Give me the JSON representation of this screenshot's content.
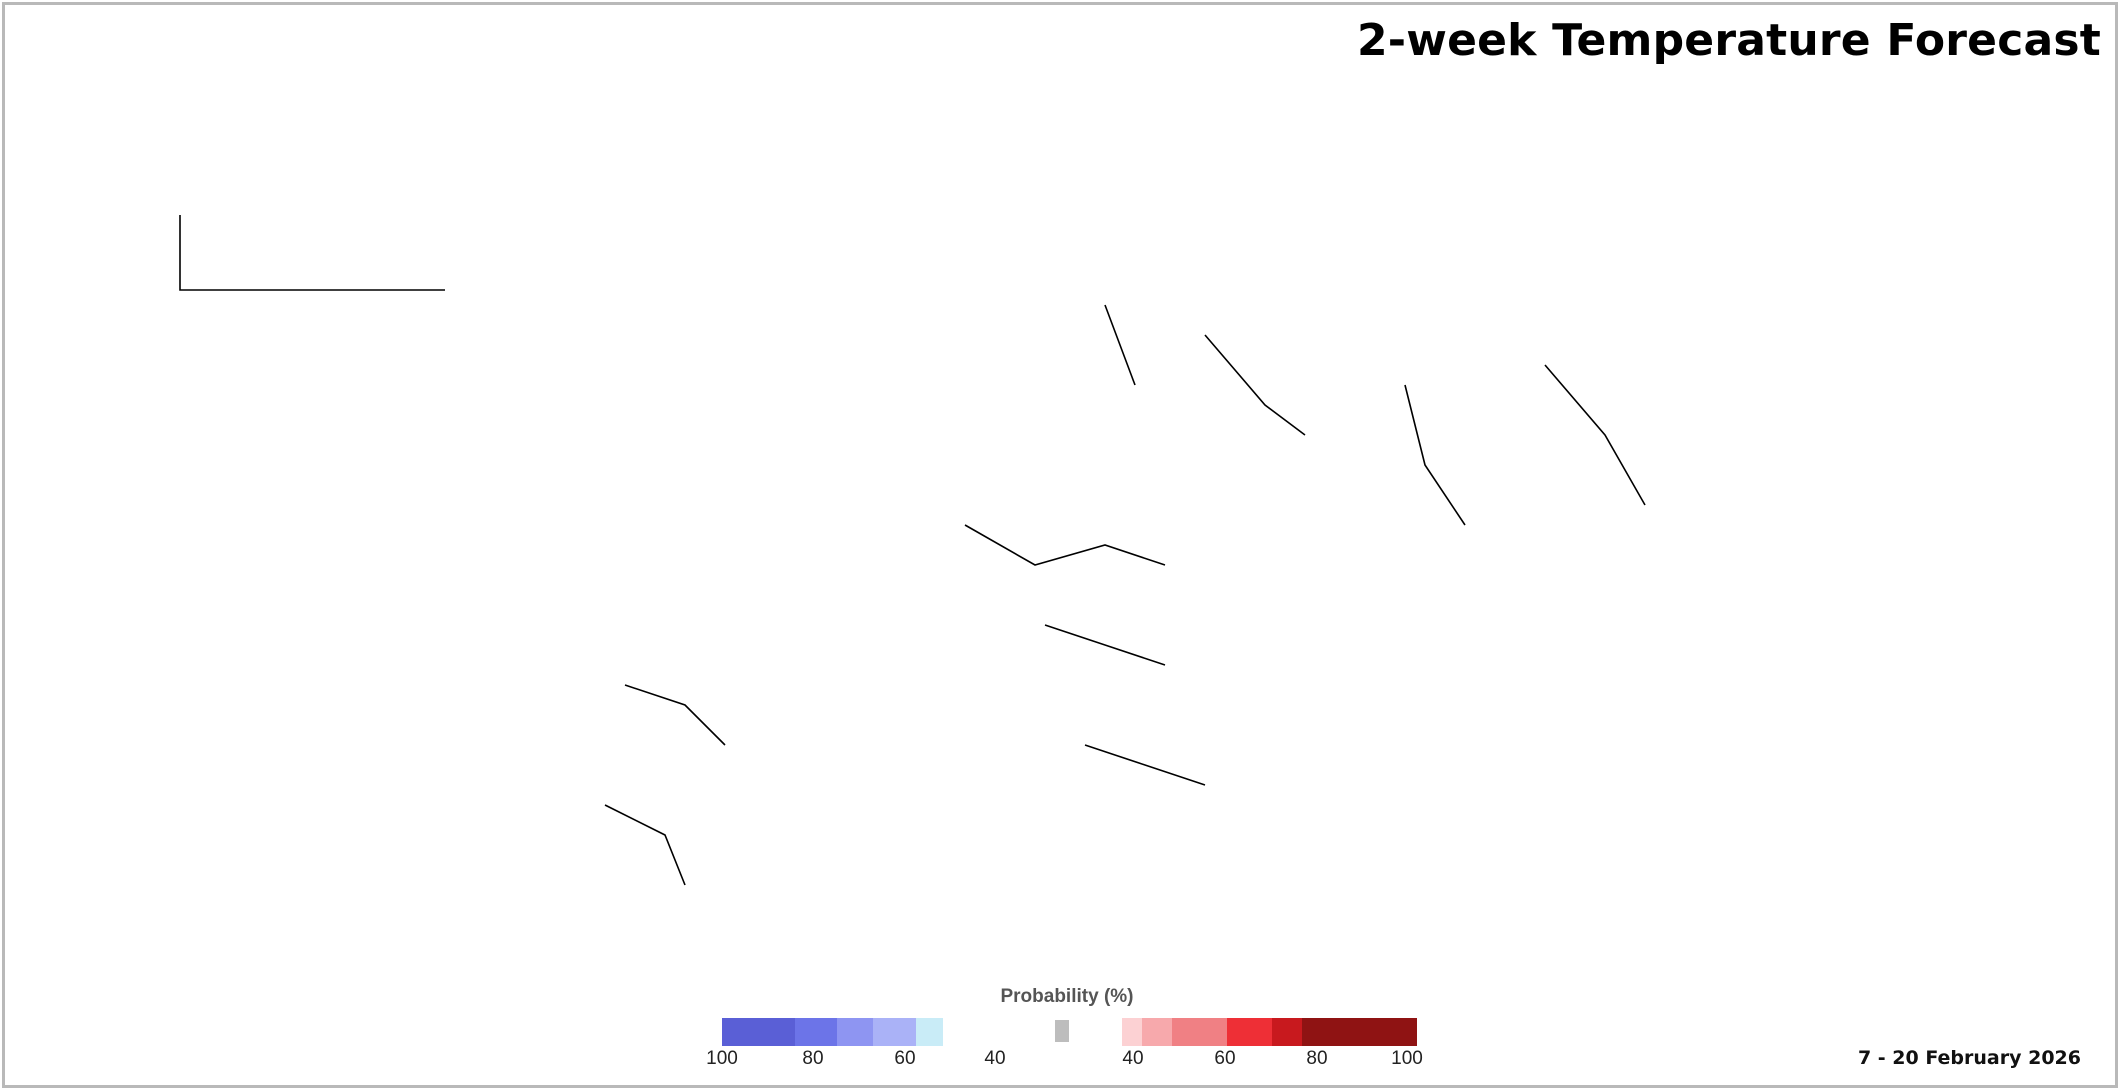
{
  "title": "2-week Temperature Forecast",
  "date_range": "7 - 20 February 2026",
  "legend": {
    "title": "Probability (%)",
    "below_ticks": [
      "100",
      "80",
      "60",
      "40"
    ],
    "above_ticks": [
      "40",
      "60",
      "80",
      "100"
    ],
    "colors": {
      "below_100": "#5a5fd6",
      "below_80": "#6c74e8",
      "below_60": "#8e95f2",
      "below_50": "#aab2f7",
      "below_40": "#c9ecf7",
      "normal": "#bdbdbd",
      "above_40": "#fcd1d3",
      "above_50": "#f7a9ac",
      "above_55": "#f08084",
      "above_60": "#ee2f36",
      "above_70": "#c8191e",
      "above_80": "#8f1313"
    }
  },
  "colors": {
    "background": "#ffffff",
    "frame": "#b9b9b9",
    "land": "#ffffff",
    "coast": "#000000"
  }
}
